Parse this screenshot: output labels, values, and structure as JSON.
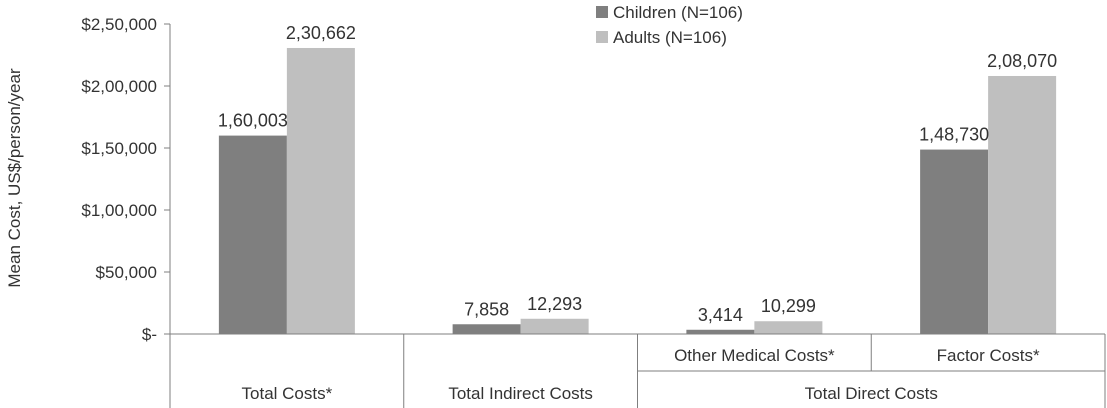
{
  "chart_data": {
    "type": "bar",
    "ylabel": "Mean Cost, US$/person/year",
    "ylim": [
      0,
      250000
    ],
    "y_tick_values": [
      0,
      50000,
      100000,
      150000,
      200000,
      250000
    ],
    "y_tick_labels": [
      "$-",
      "$50,000",
      "$1,00,000",
      "$1,50,000",
      "$2,00,000",
      "$2,50,000"
    ],
    "grid": false,
    "legend_position": "top-center",
    "categories": [
      "Total Costs*",
      "Total Indirect Costs",
      "Other Medical Costs*",
      "Factor Costs*"
    ],
    "category_groups": [
      {
        "label": "Total Costs*",
        "categories": [
          "Total Costs*"
        ]
      },
      {
        "label": "Total Indirect Costs",
        "categories": [
          "Total Indirect Costs"
        ]
      },
      {
        "label": "Total Direct Costs",
        "categories": [
          "Other Medical Costs*",
          "Factor Costs*"
        ]
      }
    ],
    "series": [
      {
        "name": "Children (N=106)",
        "color": "#7f7f7f",
        "values": [
          160003,
          7858,
          3414,
          148730
        ],
        "labels": [
          "1,60,003",
          "7,858",
          "3,414",
          "1,48,730"
        ]
      },
      {
        "name": "Adults (N=106)",
        "color": "#bfbfbf",
        "values": [
          230662,
          12293,
          10299,
          208070
        ],
        "labels": [
          "2,30,662",
          "12,293",
          "10,299",
          "2,08,070"
        ]
      }
    ]
  }
}
